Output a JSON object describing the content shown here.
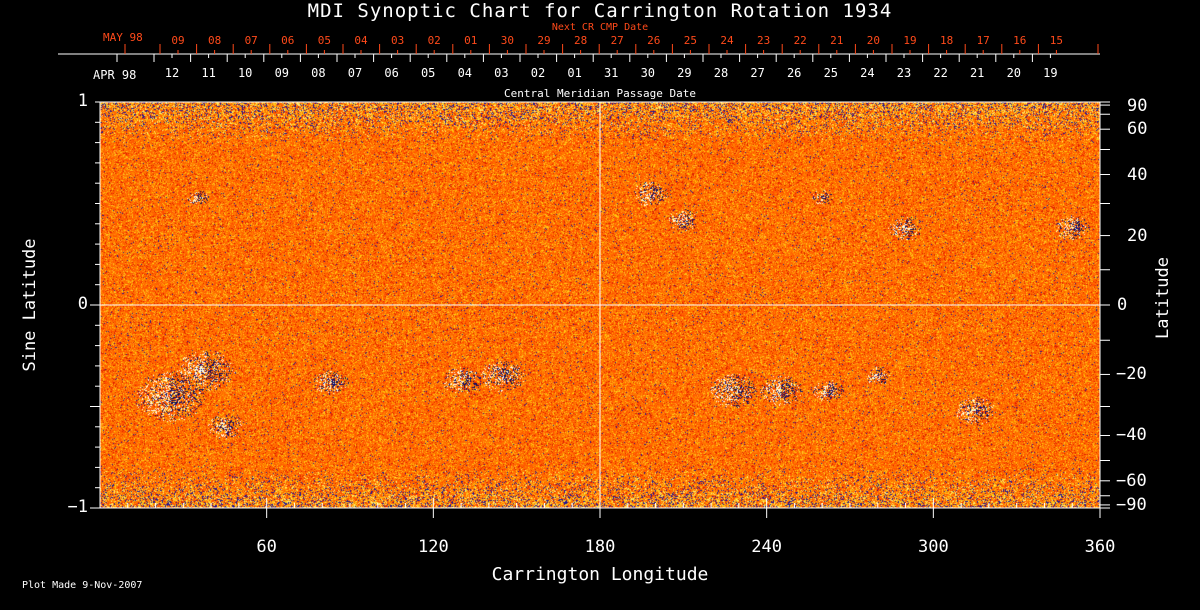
{
  "chart_data": {
    "type": "heatmap",
    "title": "MDI Synoptic Chart for Carrington Rotation 1934",
    "xlabel": "Carrington Longitude",
    "ylabel_left": "Sine Latitude",
    "ylabel_right": "Latitude",
    "xlim": [
      0,
      360
    ],
    "ylim": [
      -1,
      1
    ],
    "x_ticks": [
      60,
      120,
      180,
      240,
      300,
      360
    ],
    "y_ticks_left": [
      {
        "v": 1,
        "label": "1"
      },
      {
        "v": 0,
        "label": "0"
      },
      {
        "v": -1,
        "label": "−1"
      }
    ],
    "y_ticks_right": [
      {
        "lat": 90,
        "label": "90"
      },
      {
        "lat": 60,
        "label": "60"
      },
      {
        "lat": 40,
        "label": "40"
      },
      {
        "lat": 20,
        "label": "20"
      },
      {
        "lat": 0,
        "label": "0"
      },
      {
        "lat": -20,
        "label": "−20"
      },
      {
        "lat": -40,
        "label": "−40"
      },
      {
        "lat": -60,
        "label": "−60"
      },
      {
        "lat": -90,
        "label": "−90"
      }
    ],
    "top_axis": {
      "title": "Central Meridian Passage Date",
      "start_label": "APR 98",
      "dates": [
        "12",
        "11",
        "10",
        "09",
        "08",
        "07",
        "06",
        "05",
        "04",
        "03",
        "02",
        "01",
        "31",
        "30",
        "29",
        "28",
        "27",
        "26",
        "25",
        "24",
        "23",
        "22",
        "21",
        "20",
        "19"
      ]
    },
    "next_cr_axis": {
      "title": "Next CR CMP Date",
      "start_label": "MAY 98",
      "dates": [
        "09",
        "08",
        "07",
        "06",
        "05",
        "04",
        "03",
        "02",
        "01",
        "30",
        "29",
        "28",
        "27",
        "26",
        "25",
        "24",
        "23",
        "22",
        "21",
        "20",
        "19",
        "18",
        "17",
        "16",
        "15"
      ]
    },
    "active_regions": [
      {
        "lon": 25,
        "sinlat": -0.45,
        "polarity": "mixed",
        "size": 1.6
      },
      {
        "lon": 38,
        "sinlat": -0.32,
        "polarity": "mixed",
        "size": 1.3
      },
      {
        "lon": 45,
        "sinlat": -0.6,
        "polarity": "negative",
        "size": 0.8
      },
      {
        "lon": 83,
        "sinlat": -0.38,
        "polarity": "mixed",
        "size": 0.8
      },
      {
        "lon": 130,
        "sinlat": -0.37,
        "polarity": "mixed",
        "size": 0.9
      },
      {
        "lon": 145,
        "sinlat": -0.35,
        "polarity": "mixed",
        "size": 1.0
      },
      {
        "lon": 35,
        "sinlat": 0.53,
        "polarity": "mixed",
        "size": 0.5
      },
      {
        "lon": 198,
        "sinlat": 0.55,
        "polarity": "mixed",
        "size": 0.8
      },
      {
        "lon": 210,
        "sinlat": 0.42,
        "polarity": "mixed",
        "size": 0.7
      },
      {
        "lon": 260,
        "sinlat": 0.53,
        "polarity": "mixed",
        "size": 0.5
      },
      {
        "lon": 290,
        "sinlat": 0.38,
        "polarity": "mixed",
        "size": 0.8
      },
      {
        "lon": 350,
        "sinlat": 0.38,
        "polarity": "mixed",
        "size": 0.8
      },
      {
        "lon": 228,
        "sinlat": -0.42,
        "polarity": "mixed",
        "size": 1.1
      },
      {
        "lon": 245,
        "sinlat": -0.42,
        "polarity": "mixed",
        "size": 1.0
      },
      {
        "lon": 262,
        "sinlat": -0.42,
        "polarity": "mixed",
        "size": 0.7
      },
      {
        "lon": 280,
        "sinlat": -0.35,
        "polarity": "mixed",
        "size": 0.6
      },
      {
        "lon": 315,
        "sinlat": -0.52,
        "polarity": "negative",
        "size": 0.9
      }
    ],
    "grid": "center lines at longitude 180 and sine latitude 0"
  },
  "footer": {
    "plot_made": "Plot Made  9-Nov-2007"
  }
}
